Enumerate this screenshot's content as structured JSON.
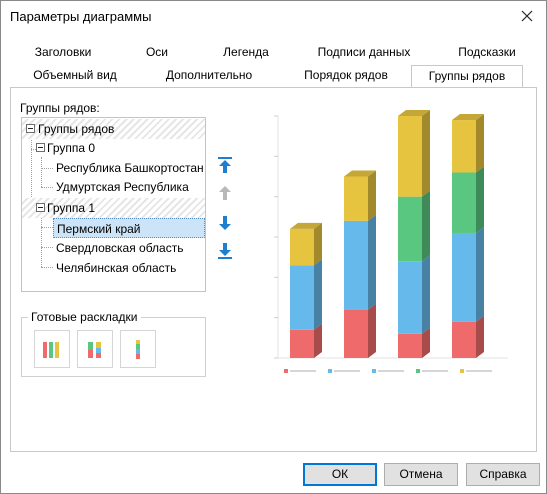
{
  "window": {
    "title": "Параметры диаграммы"
  },
  "tabs": {
    "row1": [
      "Заголовки",
      "Оси",
      "Легенда",
      "Подписи данных",
      "Подсказки"
    ],
    "row2": [
      "Объемный вид",
      "Дополнительно",
      "Порядок рядов",
      "Группы рядов"
    ],
    "active": "Группы рядов"
  },
  "series_groups": {
    "label": "Группы рядов:",
    "root": "Группы рядов",
    "groups": [
      {
        "name": "Группа 0",
        "items": [
          "Республика Башкортостан",
          "Удмуртская Республика"
        ]
      },
      {
        "name": "Группа 1",
        "items": [
          "Пермский край",
          "Свердловская область",
          "Челябинская область"
        ]
      }
    ],
    "selected_item": "Пермский край"
  },
  "move_buttons": {
    "icons": [
      "move-to-top-icon",
      "move-up-icon",
      "move-down-icon",
      "move-to-bottom-icon"
    ]
  },
  "presets": {
    "label": "Готовые раскладки",
    "items": [
      "layout-three-columns-icon",
      "layout-two-stacks-icon",
      "layout-single-stack-icon"
    ]
  },
  "colors": {
    "accent": "#1e7fd0",
    "selection_bg": "#cce4f7",
    "series_red": "#ef6b6b",
    "series_blue": "#66baeb",
    "series_green": "#59c77f",
    "series_yellow": "#e7c43f"
  },
  "chart_data": {
    "type": "bar",
    "stacked_3d": true,
    "categories": [
      "",
      "",
      "",
      ""
    ],
    "ylim": [
      0,
      60
    ],
    "series": [
      {
        "values": [
          7,
          12,
          6,
          9
        ]
      },
      {
        "values": [
          16,
          22,
          18,
          22
        ]
      },
      {
        "values": [
          0,
          0,
          16,
          15
        ]
      },
      {
        "values": [
          0,
          0,
          0,
          0
        ]
      },
      {
        "values": [
          9,
          11,
          20,
          13
        ]
      }
    ],
    "legend_position": "bottom",
    "grid": false
  },
  "buttons": {
    "ok": "ОК",
    "cancel": "Отмена",
    "help": "Справка"
  }
}
